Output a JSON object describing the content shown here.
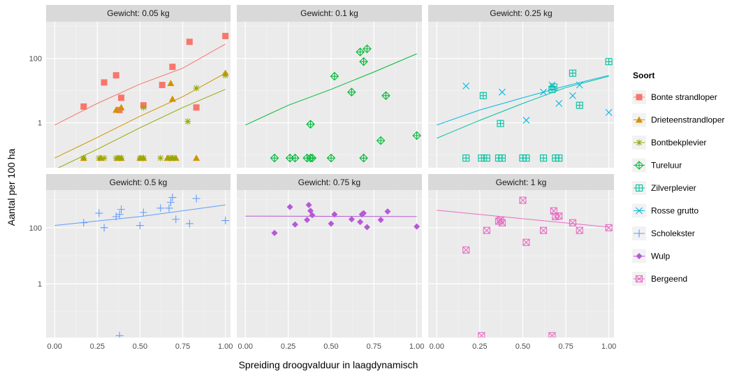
{
  "chart_data": {
    "type": "scatter",
    "xlabel": "Spreiding droogvalduur in laagdynamisch",
    "ylabel": "Aantal per 100 ha",
    "y_scale": "log10",
    "xlim": [
      -0.05,
      1.03
    ],
    "ylim_top_row": [
      0.04,
      1400
    ],
    "ylim_bottom_row": [
      0.012,
      2200
    ],
    "x_ticks": [
      0,
      0.25,
      0.5,
      0.75,
      1
    ],
    "x_tick_labels": [
      "0.00",
      "0.25",
      "0.50",
      "0.75",
      "1.00"
    ],
    "y_ticks": [
      1,
      100
    ],
    "y_tick_labels": [
      "1",
      "100"
    ],
    "legend": {
      "title": "Soort",
      "position": "right",
      "items": [
        {
          "name": "Bonte strandloper",
          "color": "#F8766D",
          "shape": "square"
        },
        {
          "name": "Drieteenstrandloper",
          "color": "#D39200",
          "shape": "triangle"
        },
        {
          "name": "Bontbekplevier",
          "color": "#93AA00",
          "shape": "asterisk"
        },
        {
          "name": "Tureluur",
          "color": "#00BA38",
          "shape": "diamond-plus"
        },
        {
          "name": "Zilverplevier",
          "color": "#00C19F",
          "shape": "square-plus"
        },
        {
          "name": "Rosse grutto",
          "color": "#00B9E3",
          "shape": "cross"
        },
        {
          "name": "Scholekster",
          "color": "#619CFF",
          "shape": "plus"
        },
        {
          "name": "Wulp",
          "color": "#B559D6",
          "shape": "diamond"
        },
        {
          "name": "Bergeend",
          "color": "#E76BC3",
          "shape": "square-x"
        }
      ]
    },
    "panels": [
      {
        "title": "Gewicht: 0.05 kg",
        "series": [
          {
            "name": "Bonte strandloper",
            "points": [
              [
                0.17,
                3.2
              ],
              [
                0.29,
                18
              ],
              [
                0.36,
                30
              ],
              [
                0.38,
                2.5
              ],
              [
                0.39,
                6
              ],
              [
                0.52,
                3.5
              ],
              [
                0.63,
                15
              ],
              [
                0.69,
                55
              ],
              [
                0.79,
                330
              ],
              [
                0.83,
                3
              ],
              [
                1.0,
                500
              ]
            ],
            "fit": [
              [
                0,
                0.85
              ],
              [
                0.25,
                4
              ],
              [
                0.5,
                16
              ],
              [
                0.75,
                50
              ],
              [
                1.0,
                280
              ]
            ]
          },
          {
            "name": "Drieteenstrandloper",
            "points": [
              [
                0.36,
                2.5
              ],
              [
                0.39,
                3
              ],
              [
                0.68,
                17
              ],
              [
                0.69,
                5.5
              ],
              [
                1.0,
                35
              ],
              [
                0.17,
                0.08
              ],
              [
                0.27,
                0.08
              ],
              [
                0.37,
                0.08
              ],
              [
                0.39,
                0.08
              ],
              [
                0.5,
                0.08
              ],
              [
                0.52,
                0.08
              ],
              [
                0.66,
                0.08
              ],
              [
                0.69,
                0.08
              ],
              [
                0.71,
                0.08
              ],
              [
                0.83,
                0.08
              ]
            ],
            "fit": [
              [
                0,
                0.08
              ],
              [
                0.25,
                0.35
              ],
              [
                0.5,
                1.6
              ],
              [
                0.75,
                6.5
              ],
              [
                1.0,
                35
              ]
            ]
          },
          {
            "name": "Bontbekplevier",
            "points": [
              [
                0.52,
                3
              ],
              [
                0.78,
                1.1
              ],
              [
                0.83,
                12
              ],
              [
                1.0,
                30
              ],
              [
                0.17,
                0.08
              ],
              [
                0.26,
                0.08
              ],
              [
                0.29,
                0.08
              ],
              [
                0.36,
                0.08
              ],
              [
                0.38,
                0.08
              ],
              [
                0.39,
                0.08
              ],
              [
                0.5,
                0.08
              ],
              [
                0.52,
                0.08
              ],
              [
                0.62,
                0.08
              ],
              [
                0.67,
                0.08
              ],
              [
                0.68,
                0.08
              ],
              [
                0.7,
                0.08
              ]
            ],
            "fit": [
              [
                0,
                0.035
              ],
              [
                0.25,
                0.15
              ],
              [
                0.5,
                0.7
              ],
              [
                0.75,
                3
              ],
              [
                1.0,
                11
              ]
            ]
          }
        ]
      },
      {
        "title": "Gewicht: 0.1 kg",
        "series": [
          {
            "name": "Tureluur",
            "points": [
              [
                0.17,
                0.08
              ],
              [
                0.26,
                0.08
              ],
              [
                0.29,
                0.08
              ],
              [
                0.36,
                0.08
              ],
              [
                0.38,
                0.08
              ],
              [
                0.39,
                0.08
              ],
              [
                0.5,
                0.08
              ],
              [
                0.69,
                0.08
              ],
              [
                0.38,
                0.9
              ],
              [
                0.52,
                28
              ],
              [
                0.62,
                9
              ],
              [
                0.67,
                160
              ],
              [
                0.69,
                80
              ],
              [
                0.71,
                200
              ],
              [
                0.82,
                7
              ],
              [
                0.79,
                0.28
              ],
              [
                1.0,
                0.4
              ]
            ],
            "fit": [
              [
                0,
                0.85
              ],
              [
                0.25,
                3.5
              ],
              [
                0.5,
                11
              ],
              [
                0.75,
                38
              ],
              [
                1.0,
                140
              ]
            ]
          }
        ]
      },
      {
        "title": "Gewicht: 0.25 kg",
        "series": [
          {
            "name": "Zilverplevier",
            "points": [
              [
                0.17,
                0.08
              ],
              [
                0.26,
                0.08
              ],
              [
                0.29,
                0.08
              ],
              [
                0.36,
                0.08
              ],
              [
                0.38,
                0.08
              ],
              [
                0.5,
                0.08
              ],
              [
                0.52,
                0.08
              ],
              [
                0.62,
                0.08
              ],
              [
                0.69,
                0.08
              ],
              [
                0.71,
                0.08
              ],
              [
                0.27,
                7
              ],
              [
                0.37,
                0.95
              ],
              [
                0.67,
                11
              ],
              [
                0.68,
                13
              ],
              [
                0.79,
                35
              ],
              [
                0.83,
                3.5
              ],
              [
                1.0,
                80
              ]
            ],
            "fit": [
              [
                0,
                0.33
              ],
              [
                0.25,
                1.2
              ],
              [
                0.5,
                4
              ],
              [
                0.75,
                12.5
              ],
              [
                1.0,
                28
              ]
            ]
          },
          {
            "name": "Rosse grutto",
            "points": [
              [
                0.17,
                14
              ],
              [
                0.38,
                9
              ],
              [
                0.52,
                1.2
              ],
              [
                0.62,
                9
              ],
              [
                0.67,
                15
              ],
              [
                0.71,
                4
              ],
              [
                0.79,
                7
              ],
              [
                0.83,
                15
              ],
              [
                1.0,
                2.1
              ]
            ],
            "fit": [
              [
                0,
                0.85
              ],
              [
                0.25,
                2.5
              ],
              [
                0.5,
                6
              ],
              [
                0.75,
                14
              ],
              [
                1.0,
                30
              ]
            ]
          }
        ]
      },
      {
        "title": "Gewicht: 0.5 kg",
        "series": [
          {
            "name": "Scholekster",
            "points": [
              [
                0.17,
                150
              ],
              [
                0.26,
                330
              ],
              [
                0.29,
                100
              ],
              [
                0.36,
                250
              ],
              [
                0.38,
                300
              ],
              [
                0.39,
                450
              ],
              [
                0.5,
                120
              ],
              [
                0.52,
                350
              ],
              [
                0.62,
                500
              ],
              [
                0.67,
                500
              ],
              [
                0.68,
                800
              ],
              [
                0.69,
                1200
              ],
              [
                0.71,
                200
              ],
              [
                0.79,
                140
              ],
              [
                0.83,
                1100
              ],
              [
                1.0,
                180
              ],
              [
                0.38,
                0.014
              ]
            ],
            "fit": [
              [
                0,
                120
              ],
              [
                0.5,
                250
              ],
              [
                1.0,
                650
              ]
            ]
          }
        ]
      },
      {
        "title": "Gewicht: 0.75 kg",
        "series": [
          {
            "name": "Wulp",
            "points": [
              [
                0.17,
                65
              ],
              [
                0.26,
                550
              ],
              [
                0.29,
                130
              ],
              [
                0.36,
                190
              ],
              [
                0.37,
                650
              ],
              [
                0.38,
                400
              ],
              [
                0.39,
                280
              ],
              [
                0.5,
                140
              ],
              [
                0.52,
                300
              ],
              [
                0.62,
                200
              ],
              [
                0.67,
                160
              ],
              [
                0.68,
                300
              ],
              [
                0.69,
                330
              ],
              [
                0.71,
                105
              ],
              [
                0.79,
                190
              ],
              [
                0.83,
                380
              ],
              [
                1.0,
                110
              ]
            ],
            "fit": [
              [
                0,
                260
              ],
              [
                1.0,
                250
              ]
            ]
          }
        ]
      },
      {
        "title": "Gewicht: 1 kg",
        "series": [
          {
            "name": "Bergeend",
            "points": [
              [
                0.17,
                16
              ],
              [
                0.26,
                0.014
              ],
              [
                0.29,
                80
              ],
              [
                0.36,
                170
              ],
              [
                0.37,
                190
              ],
              [
                0.38,
                150
              ],
              [
                0.5,
                950
              ],
              [
                0.52,
                30
              ],
              [
                0.62,
                80
              ],
              [
                0.67,
                0.014
              ],
              [
                0.68,
                400
              ],
              [
                0.69,
                250
              ],
              [
                0.71,
                260
              ],
              [
                0.79,
                150
              ],
              [
                0.83,
                80
              ],
              [
                1.0,
                100
              ]
            ],
            "fit": [
              [
                0,
                420
              ],
              [
                1.0,
                105
              ]
            ]
          }
        ]
      }
    ]
  }
}
